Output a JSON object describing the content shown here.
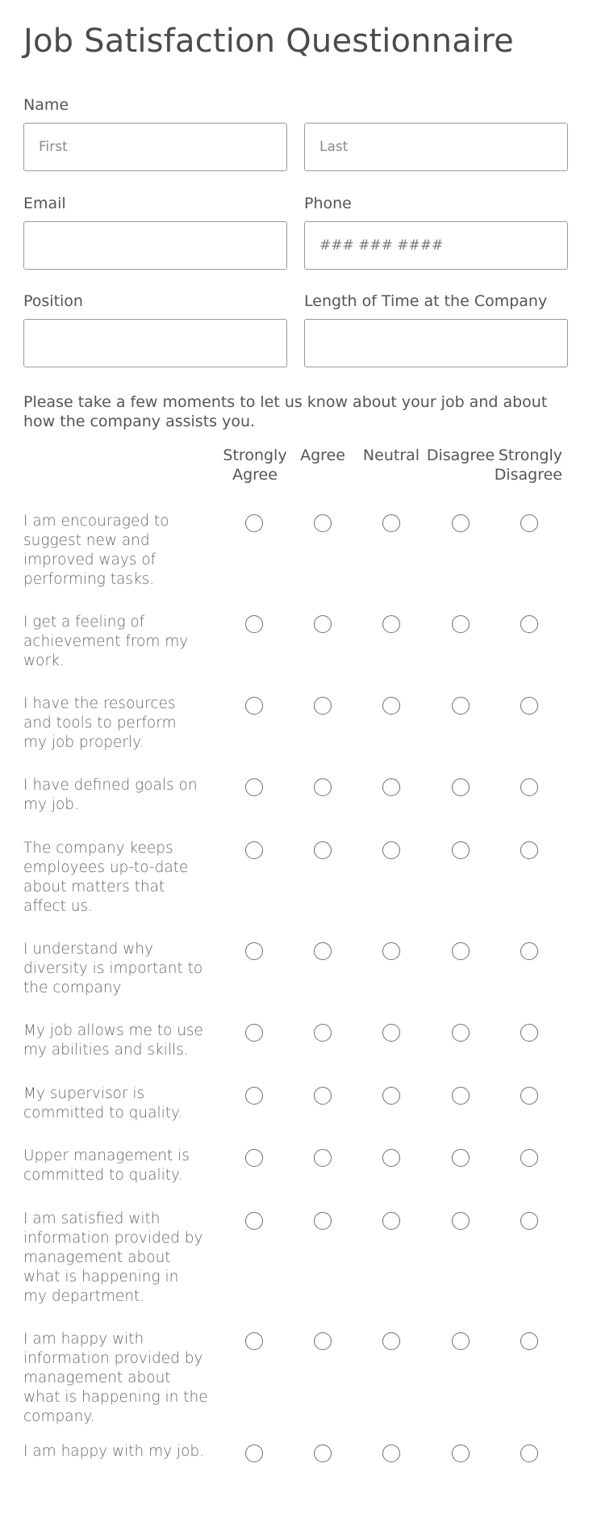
{
  "form": {
    "title": "Job Satisfaction Questionnaire",
    "name": {
      "label": "Name",
      "first_placeholder": "First",
      "last_placeholder": "Last"
    },
    "email": {
      "label": "Email",
      "placeholder": ""
    },
    "phone": {
      "label": "Phone",
      "placeholder": "### ### ####"
    },
    "position": {
      "label": "Position",
      "placeholder": ""
    },
    "tenure": {
      "label": "Length of Time at the Company",
      "placeholder": ""
    },
    "intro": "Please take a few moments to let us know about your job and about how the company assists you."
  },
  "scale": {
    "columns": [
      {
        "line1": "Strongly",
        "line2": "Agree"
      },
      {
        "line1": "Agree",
        "line2": ""
      },
      {
        "line1": "Neutral",
        "line2": ""
      },
      {
        "line1": "Disagree",
        "line2": ""
      },
      {
        "line1": "Strongly",
        "line2": "Disagree"
      }
    ]
  },
  "questions": [
    {
      "lines": [
        "I am encouraged to",
        "suggest new and",
        "improved ways of",
        "performing tasks."
      ]
    },
    {
      "lines": [
        "I get a feeling of",
        "achievement from my",
        "work."
      ]
    },
    {
      "lines": [
        "I have the resources",
        "and tools to perform",
        "my job properly."
      ]
    },
    {
      "lines": [
        "I have defined goals on",
        "my job."
      ]
    },
    {
      "lines": [
        "The company keeps",
        "employees up-to-date",
        "about matters that",
        "affect us."
      ]
    },
    {
      "lines": [
        "I understand why",
        "diversity is important to",
        "the company"
      ]
    },
    {
      "lines": [
        "My job allows me to use",
        "my abilities and skills."
      ]
    },
    {
      "lines": [
        "My supervisor is",
        "committed to quality."
      ]
    },
    {
      "lines": [
        "Upper management is",
        "committed to quality."
      ]
    },
    {
      "lines": [
        "I am satisfied with",
        "information provided by",
        "management about",
        "what is happening in",
        "my department."
      ]
    },
    {
      "lines": [
        "I am happy with",
        "information provided by",
        "management about",
        "what is happening in the",
        "company."
      ]
    },
    {
      "lines": [
        "I am happy with my job."
      ]
    }
  ]
}
